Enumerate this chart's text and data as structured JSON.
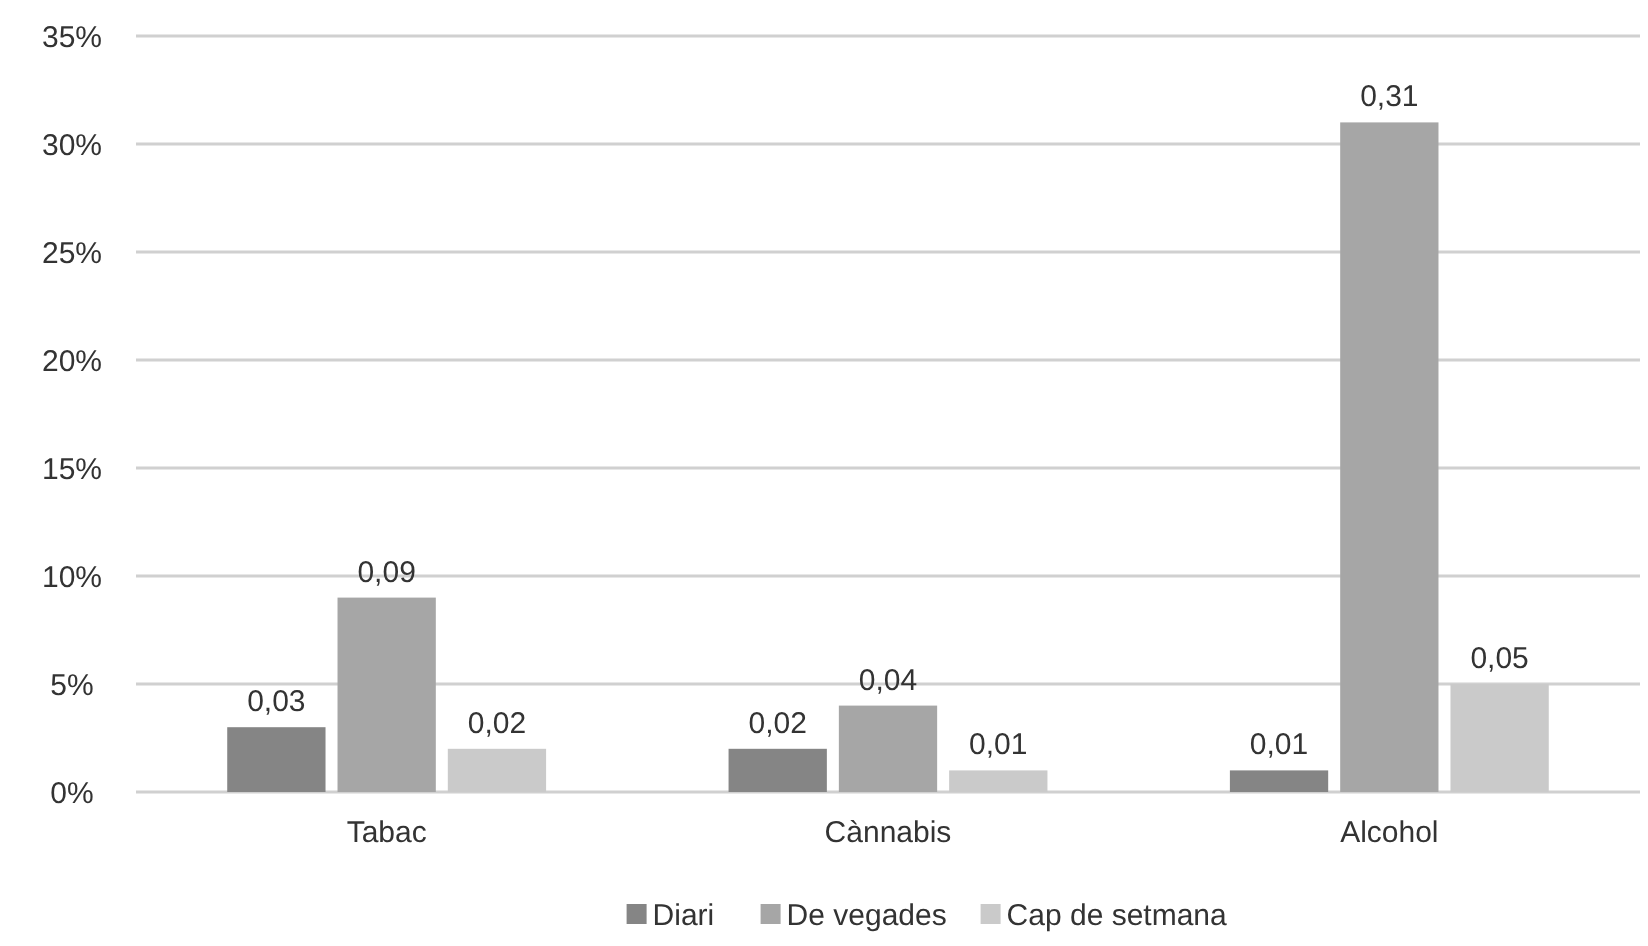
{
  "chart_data": {
    "type": "bar",
    "categories": [
      "Tabac",
      "Cànnabis",
      "Alcohol"
    ],
    "series": [
      {
        "name": "Diari",
        "color": "#858585",
        "values": [
          0.03,
          0.02,
          0.01
        ],
        "value_labels": [
          "0,03",
          "0,02",
          "0,01"
        ]
      },
      {
        "name": "De vegades",
        "color": "#a6a6a6",
        "values": [
          0.09,
          0.04,
          0.31
        ],
        "value_labels": [
          "0,09",
          "0,04",
          "0,31"
        ]
      },
      {
        "name": "Cap de setmana",
        "color": "#cacaca",
        "values": [
          0.02,
          0.01,
          0.05
        ],
        "value_labels": [
          "0,02",
          "0,01",
          "0,05"
        ]
      }
    ],
    "ylim": [
      0,
      0.35
    ],
    "yticks": [
      {
        "value": 0,
        "label": "0%"
      },
      {
        "value": 0.05,
        "label": "5%"
      },
      {
        "value": 0.1,
        "label": "10%"
      },
      {
        "value": 0.15,
        "label": "15%"
      },
      {
        "value": 0.2,
        "label": "20%"
      },
      {
        "value": 0.25,
        "label": "25%"
      },
      {
        "value": 0.3,
        "label": "30%"
      },
      {
        "value": 0.35,
        "label": "35%"
      }
    ],
    "grid": "y",
    "legend": "bottom"
  }
}
